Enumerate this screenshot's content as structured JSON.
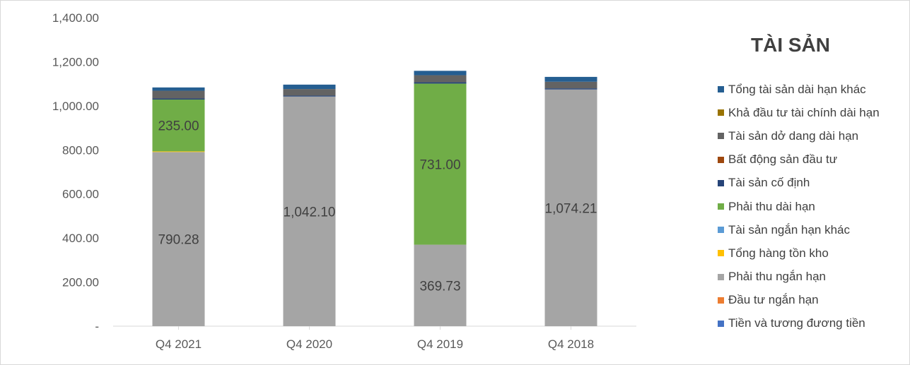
{
  "chart_data": {
    "type": "bar",
    "stacked": true,
    "title": "TÀI SẢN",
    "categories": [
      "Q4 2021",
      "Q4 2020",
      "Q4 2019",
      "Q4 2018"
    ],
    "y_tick_labels": [
      "-",
      "200.00",
      "400.00",
      "600.00",
      "800.00",
      "1,000.00",
      "1,200.00",
      "1,400.00"
    ],
    "ylim": [
      0,
      1400
    ],
    "grid": false,
    "legend_position": "right",
    "series": [
      {
        "name": "Tiền và tương đương tiền",
        "color": "#4472C4",
        "values": [
          0,
          0,
          0,
          0
        ]
      },
      {
        "name": "Đầu tư ngắn hạn",
        "color": "#ED7D31",
        "values": [
          0,
          0,
          0,
          0
        ]
      },
      {
        "name": "Phải thu ngắn hạn",
        "color": "#A5A5A5",
        "values": [
          790.28,
          1042.1,
          369.73,
          1074.21
        ],
        "labels": [
          "790.28",
          "1,042.10",
          "369.73",
          "1,074.21"
        ]
      },
      {
        "name": "Tổng hàng tồn kho",
        "color": "#FFC000",
        "values": [
          3,
          0,
          0,
          0
        ]
      },
      {
        "name": "Tài sản ngắn hạn khác",
        "color": "#5B9BD5",
        "values": [
          0,
          0,
          0,
          0
        ]
      },
      {
        "name": "Phải thu dài hạn",
        "color": "#70AD47",
        "values": [
          235,
          0,
          731,
          0
        ],
        "labels": [
          "235.00",
          "",
          "731.00",
          ""
        ]
      },
      {
        "name": "Tài sản cố định",
        "color": "#264478",
        "values": [
          5,
          4,
          6,
          5
        ]
      },
      {
        "name": "Bất động sản đầu tư",
        "color": "#9E480E",
        "values": [
          0,
          0,
          0,
          0
        ]
      },
      {
        "name": "Tài sản dở dang dài hạn",
        "color": "#636363",
        "values": [
          35,
          30,
          32,
          30
        ]
      },
      {
        "name": "Khả đầu tư tài chính dài hạn",
        "color": "#997300",
        "values": [
          0,
          0,
          0,
          0
        ]
      },
      {
        "name": "Tổng tài sản dài hạn khác",
        "color": "#255E91",
        "values": [
          15,
          20,
          20,
          22
        ]
      }
    ]
  }
}
